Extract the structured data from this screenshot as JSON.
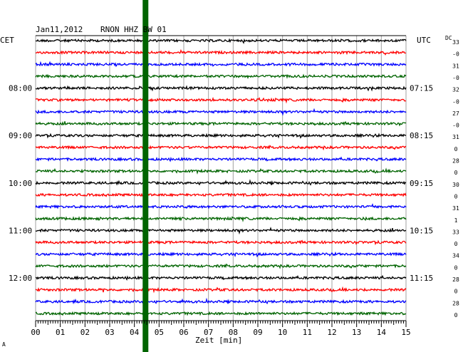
{
  "header": {
    "date": "Jan11,2012",
    "station": "RNON HHZ BW 01",
    "left_zone": "CET",
    "right_zone": "UTC",
    "dc_label": "DC"
  },
  "chart_data": {
    "type": "line",
    "title": "Jan11,2012   RNON HHZ BW 01",
    "xlabel": "Zeit [min]",
    "xlim": [
      0,
      15
    ],
    "x_ticks": [
      "00",
      "01",
      "02",
      "03",
      "04",
      "05",
      "06",
      "07",
      "08",
      "09",
      "10",
      "11",
      "12",
      "13",
      "14",
      "15"
    ],
    "trace_colors": [
      "#000000",
      "#ff0000",
      "#0000ff",
      "#006400"
    ],
    "trace_count": 24,
    "left_time_labels": [
      "08:00",
      "09:00",
      "10:00",
      "11:00",
      "12:00"
    ],
    "right_time_labels": [
      "07:15",
      "08:15",
      "09:15",
      "10:15",
      "11:15"
    ],
    "dc_offsets": [
      "33",
      "-0",
      "31",
      "-0",
      "32",
      "-0",
      "27",
      "-0",
      "31",
      "0",
      "28",
      "0",
      "30",
      "0",
      "31",
      "1",
      "33",
      "0",
      "34",
      "0",
      "28",
      "0",
      "28",
      "0"
    ],
    "event_marker": {
      "color": "#006400",
      "minute": 4.45
    },
    "grid": true
  },
  "footer": {
    "mark": "A"
  }
}
